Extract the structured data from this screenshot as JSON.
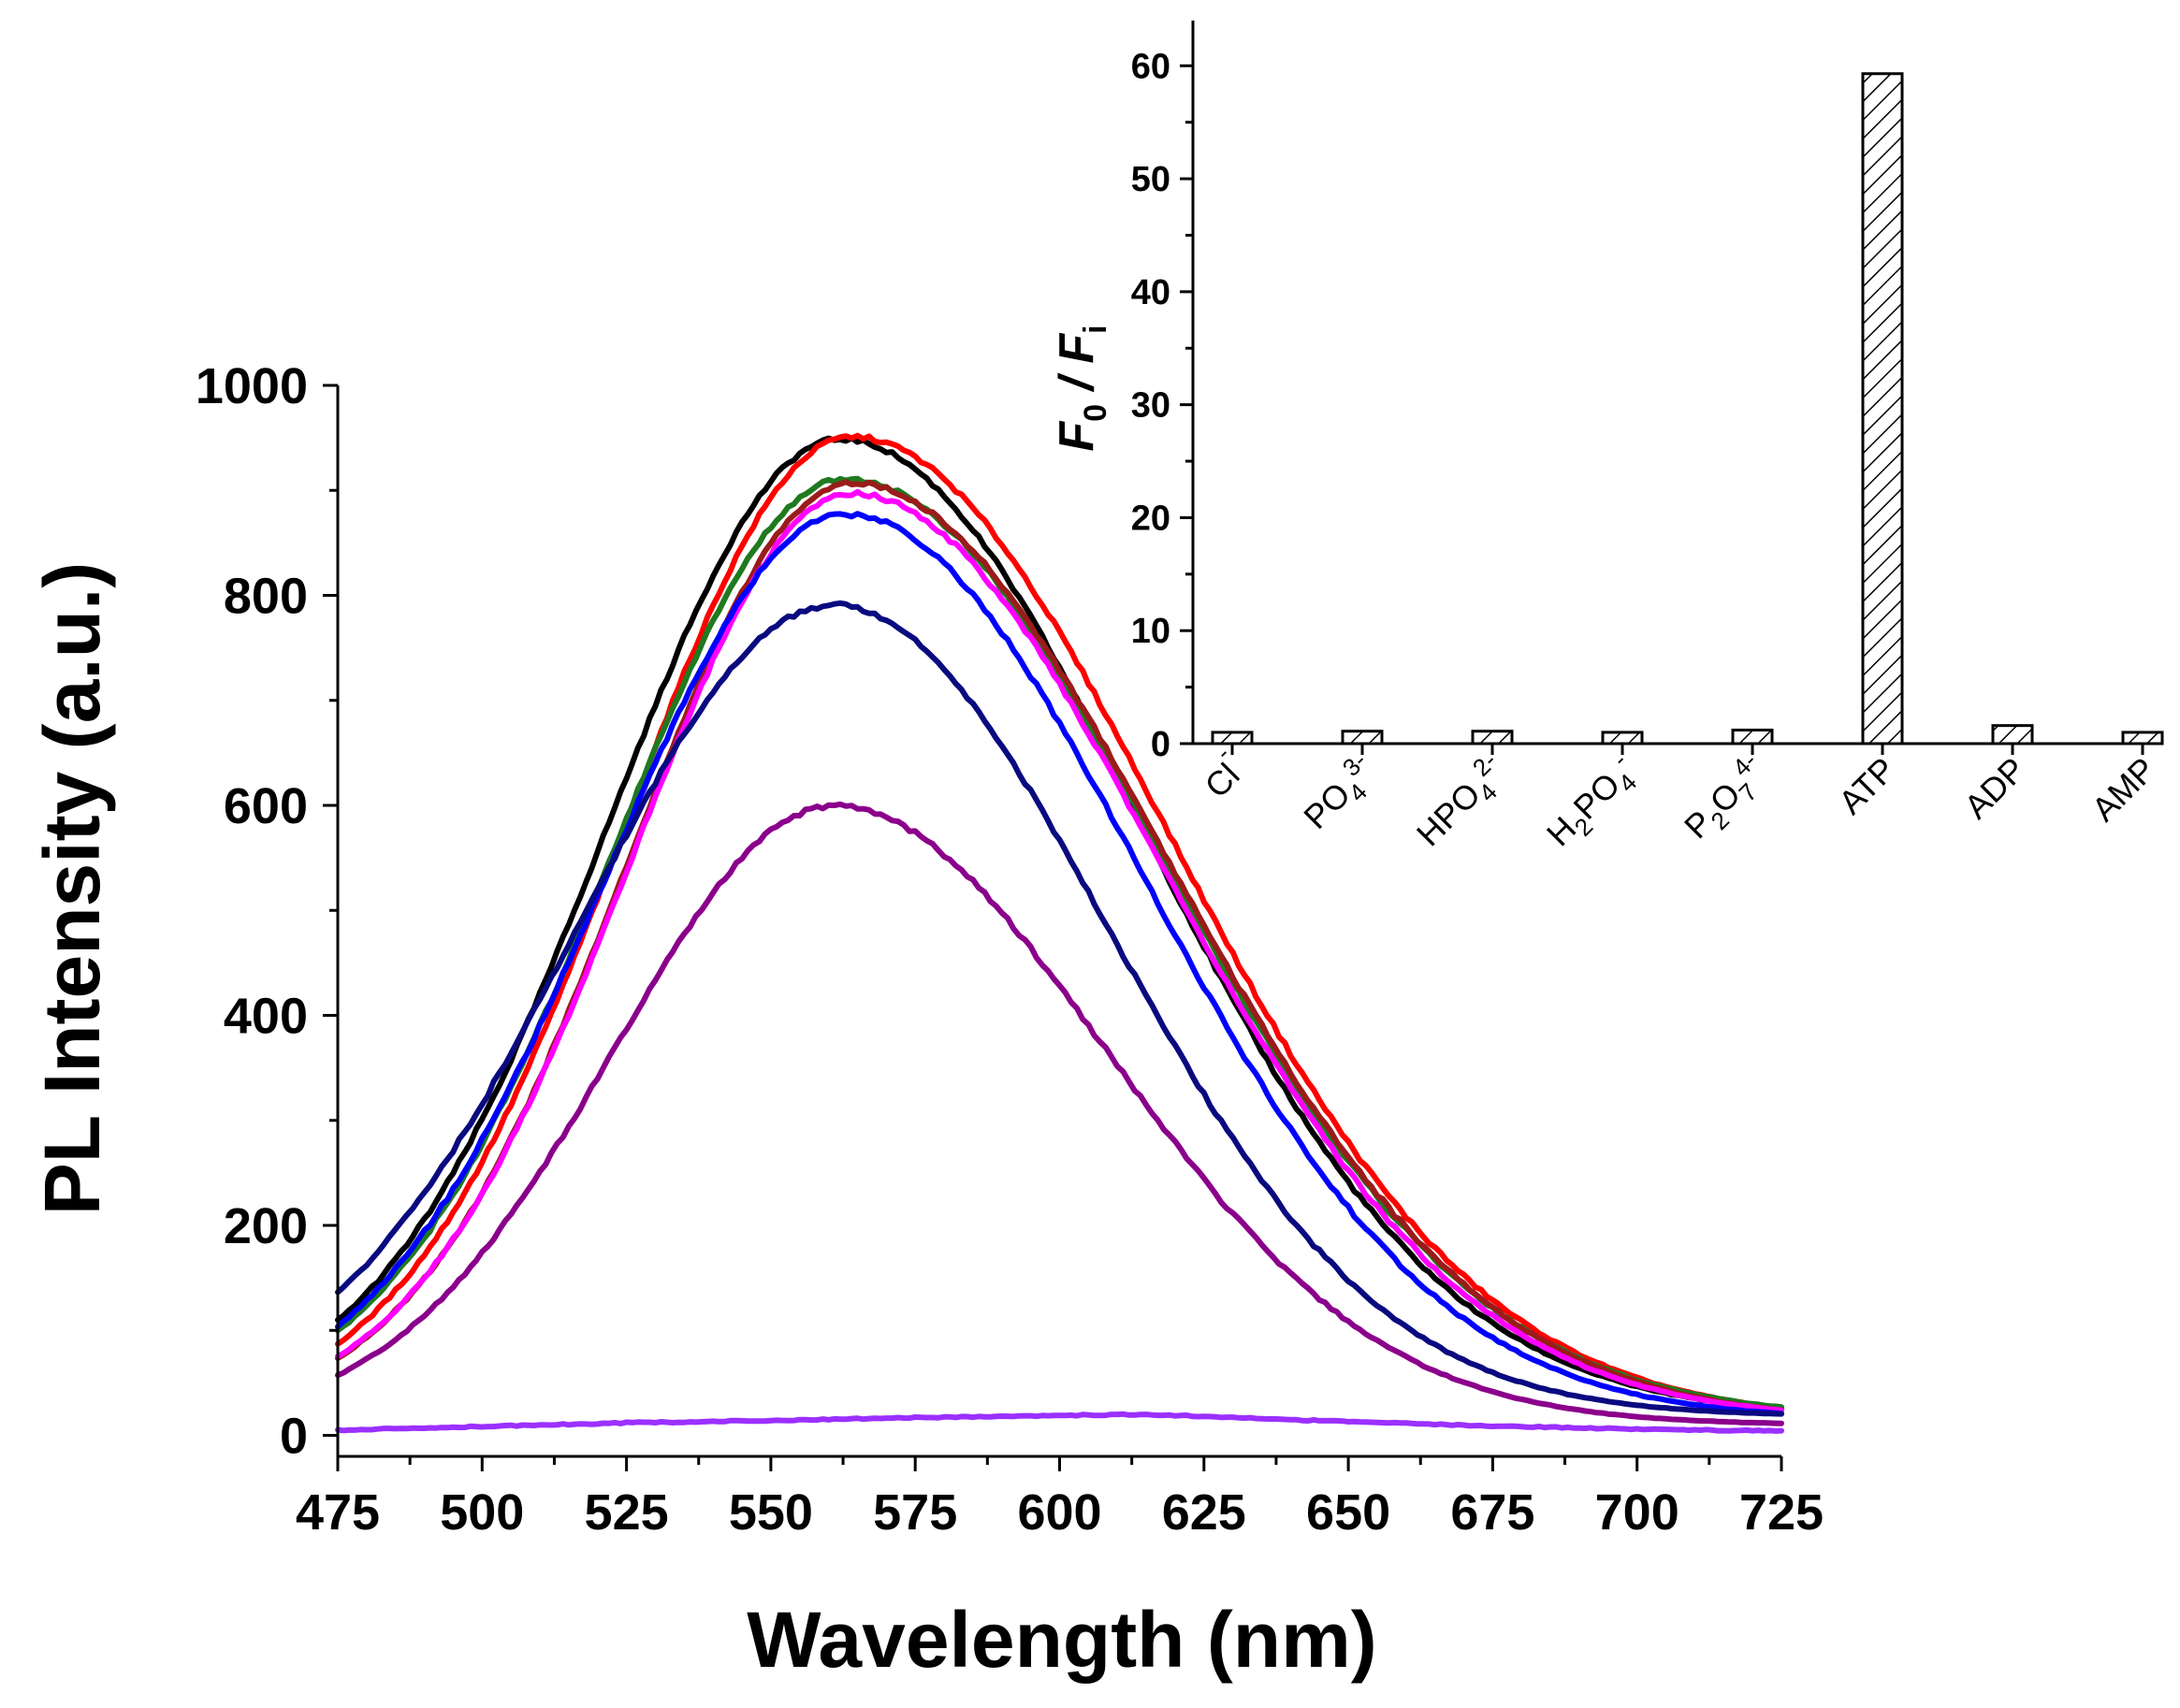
{
  "chart_data": [
    {
      "type": "line",
      "title": "",
      "xlabel": "Wavelength (nm)",
      "ylabel": "PL Intensity (a.u.)",
      "xlim": [
        475,
        725
      ],
      "ylim": [
        -20,
        1000
      ],
      "xticks": [
        475,
        500,
        525,
        550,
        575,
        600,
        625,
        650,
        675,
        700,
        725
      ],
      "yticks": [
        0,
        200,
        400,
        600,
        800,
        1000
      ],
      "series": [
        {
          "name": "black",
          "color": "#000000",
          "peak_x": 562,
          "peak_y": 950,
          "width_left": 40,
          "width_right": 52,
          "base": 22
        },
        {
          "name": "red",
          "color": "#ff0000",
          "peak_x": 564,
          "peak_y": 952,
          "width_left": 39,
          "width_right": 54,
          "base": 18
        },
        {
          "name": "green",
          "color": "#1f7a1f",
          "peak_x": 563,
          "peak_y": 912,
          "width_left": 40,
          "width_right": 54,
          "base": 20
        },
        {
          "name": "brown",
          "color": "#9b1b1b",
          "peak_x": 564,
          "peak_y": 908,
          "width_left": 38,
          "width_right": 54,
          "base": 16
        },
        {
          "name": "magenta",
          "color": "#ff00ff",
          "peak_x": 564,
          "peak_y": 898,
          "width_left": 38,
          "width_right": 53,
          "base": 18
        },
        {
          "name": "blue",
          "color": "#0000ff",
          "peak_x": 563,
          "peak_y": 878,
          "width_left": 41,
          "width_right": 51,
          "base": 18
        },
        {
          "name": "navy",
          "color": "#0a0a80",
          "peak_x": 561,
          "peak_y": 792,
          "width_left": 44,
          "width_right": 47,
          "base": 22
        },
        {
          "name": "purple",
          "color": "#8b008b",
          "peak_x": 561,
          "peak_y": 600,
          "width_left": 38,
          "width_right": 47,
          "base": 12
        },
        {
          "name": "violet",
          "color": "#9b30ff",
          "flat": true,
          "x": [
            475,
            525,
            560,
            575,
            600,
            615,
            650,
            675,
            700,
            725
          ],
          "y": [
            5,
            12,
            15,
            17,
            19,
            20,
            13,
            9,
            6,
            4
          ]
        }
      ]
    },
    {
      "type": "bar",
      "title": "",
      "xlabel": "",
      "ylabel": "F0 / Fi",
      "ylabel_parts": {
        "f": "F",
        "sub0": "0",
        "slash": " / ",
        "sub_i": "i"
      },
      "ylim": [
        0,
        64
      ],
      "yticks": [
        0,
        10,
        20,
        30,
        40,
        50,
        60
      ],
      "categories": [
        "Cl-",
        "PO43-",
        "HPO42-",
        "H2PO4-",
        "P2O74-",
        "ATP",
        "ADP",
        "AMP"
      ],
      "category_labels": [
        [
          {
            "t": "Cl"
          },
          {
            "t": "-",
            "sup": true
          }
        ],
        [
          {
            "t": "PO"
          },
          {
            "t": "4",
            "sub": true
          },
          {
            "t": "3-",
            "sup": true
          }
        ],
        [
          {
            "t": "HPO"
          },
          {
            "t": "4",
            "sub": true
          },
          {
            "t": "2-",
            "sup": true
          }
        ],
        [
          {
            "t": "H"
          },
          {
            "t": "2",
            "sub": true
          },
          {
            "t": "PO"
          },
          {
            "t": "4",
            "sub": true
          },
          {
            "t": "-",
            "sup": true
          }
        ],
        [
          {
            "t": "P"
          },
          {
            "t": "2",
            "sub": true
          },
          {
            "t": "O"
          },
          {
            "t": "7",
            "sub": true
          },
          {
            "t": "4-",
            "sup": true
          }
        ],
        [
          {
            "t": "ATP"
          }
        ],
        [
          {
            "t": "ADP"
          }
        ],
        [
          {
            "t": "AMP"
          }
        ]
      ],
      "values": [
        1.0,
        1.1,
        1.1,
        1.0,
        1.2,
        59.3,
        1.6,
        1.0
      ]
    }
  ]
}
